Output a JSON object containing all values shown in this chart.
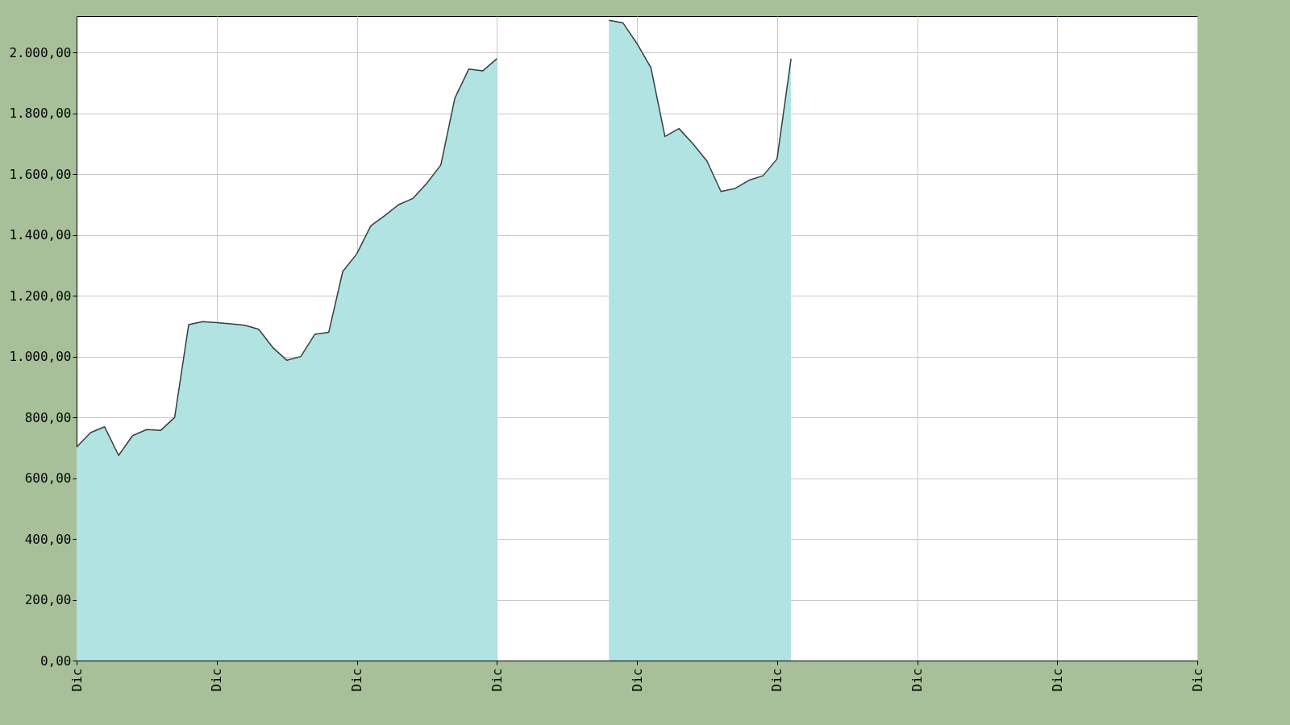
{
  "chart_data": {
    "type": "area",
    "categories": [
      "Dic",
      null,
      null,
      null,
      null,
      null,
      null,
      null,
      null,
      null,
      "Dic",
      null,
      null,
      null,
      null,
      null,
      null,
      null,
      null,
      null,
      "Dic",
      null,
      null,
      null,
      null,
      null,
      null,
      null,
      null,
      null,
      "Dic",
      null,
      null,
      null,
      null,
      null,
      null,
      null,
      null,
      null,
      "Dic",
      null,
      null,
      null,
      null,
      null,
      null,
      null,
      null,
      null,
      "Dic",
      null,
      null,
      null,
      null,
      null,
      null,
      null,
      null,
      null,
      "Dic",
      null,
      null,
      null,
      null,
      null,
      null,
      null,
      null,
      null,
      "Dic",
      null,
      null,
      null,
      null,
      null,
      null,
      null,
      null,
      null,
      "Dic"
    ],
    "series": [
      {
        "color": "#b1e3e2",
        "values": [
          702,
          750,
          769,
          675,
          740,
          760,
          757,
          800,
          1105,
          1115,
          1112,
          1108,
          1103,
          1090,
          1030,
          988,
          1000,
          1073,
          1080,
          1280,
          1338,
          1430,
          1464,
          1500,
          1520,
          1570,
          1630,
          1850,
          1946,
          1940,
          1980,
          null,
          null,
          null,
          null,
          null,
          null,
          null,
          2106,
          2098,
          2030,
          1950,
          1724,
          1750,
          1700,
          1643,
          1543,
          1553,
          1580,
          1595,
          1650,
          1980,
          null,
          null,
          null,
          null,
          null,
          null,
          null,
          null,
          null,
          null,
          null,
          null,
          null,
          null,
          null,
          null,
          null,
          null,
          null,
          null,
          null,
          null,
          null,
          null,
          null,
          null,
          null,
          null,
          null
        ]
      }
    ],
    "ylim": [
      0,
      2120
    ],
    "yticks": [
      {
        "value": 0,
        "label": "0,00"
      },
      {
        "value": 200,
        "label": "200,00"
      },
      {
        "value": 400,
        "label": "400,00"
      },
      {
        "value": 600,
        "label": "600,00"
      },
      {
        "value": 800,
        "label": "800,00"
      },
      {
        "value": 1000,
        "label": "1.000,00"
      },
      {
        "value": 1200,
        "label": "1.200,00"
      },
      {
        "value": 1400,
        "label": "1.400,00"
      },
      {
        "value": 1600,
        "label": "1.600,00"
      },
      {
        "value": 1800,
        "label": "1.800,00"
      },
      {
        "value": 2000,
        "label": "2.000,00"
      }
    ],
    "grid": true
  }
}
